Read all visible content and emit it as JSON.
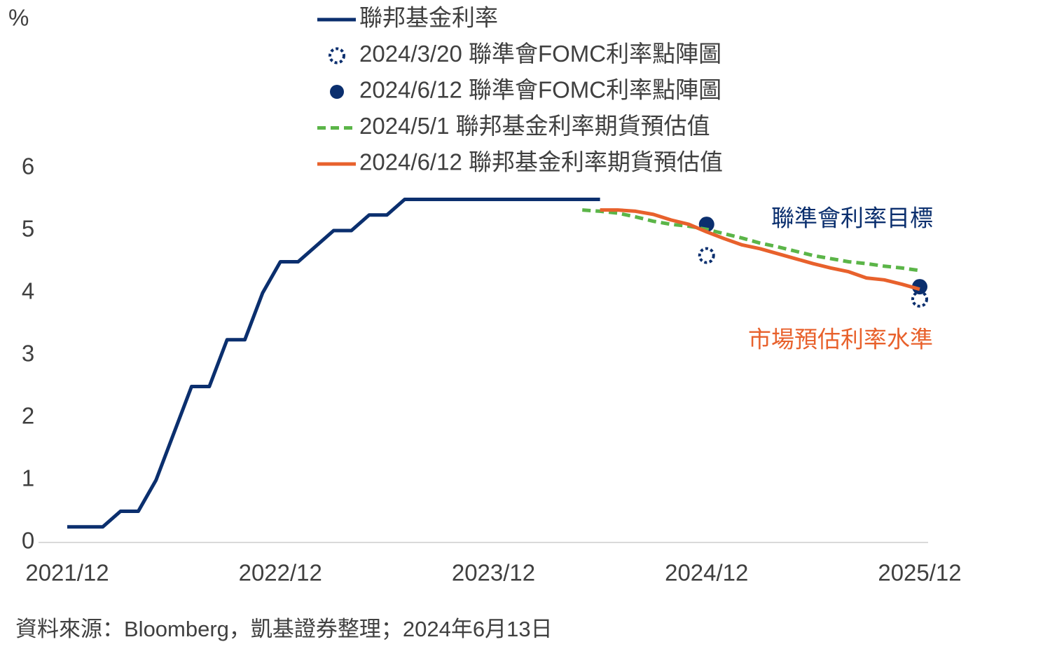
{
  "chart_data": {
    "type": "line",
    "y_unit": "%",
    "x": [
      "2021/12",
      "2022/01",
      "2022/02",
      "2022/03",
      "2022/04",
      "2022/05",
      "2022/06",
      "2022/07",
      "2022/08",
      "2022/09",
      "2022/10",
      "2022/11",
      "2022/12",
      "2023/01",
      "2023/02",
      "2023/03",
      "2023/04",
      "2023/05",
      "2023/06",
      "2023/07",
      "2023/08",
      "2023/09",
      "2023/10",
      "2023/11",
      "2023/12",
      "2024/01",
      "2024/02",
      "2024/03",
      "2024/04",
      "2024/05",
      "2024/06",
      "2024/07",
      "2024/08",
      "2024/09",
      "2024/10",
      "2024/11",
      "2024/12",
      "2025/01",
      "2025/02",
      "2025/03",
      "2025/04",
      "2025/05",
      "2025/06",
      "2025/07",
      "2025/08",
      "2025/09",
      "2025/10",
      "2025/11",
      "2025/12"
    ],
    "xticks": [
      "2021/12",
      "2022/12",
      "2023/12",
      "2024/12",
      "2025/12"
    ],
    "ylim": [
      0,
      6
    ],
    "yticks": [
      0,
      1,
      2,
      3,
      4,
      5,
      6
    ],
    "grid": false,
    "series": [
      {
        "name": "聯邦基金利率",
        "style": "line",
        "color": "#0b2f6e",
        "values": [
          0.25,
          0.25,
          0.25,
          0.5,
          0.5,
          1.0,
          1.75,
          2.5,
          2.5,
          3.25,
          3.25,
          4.0,
          4.5,
          4.5,
          4.75,
          5.0,
          5.0,
          5.25,
          5.25,
          5.5,
          5.5,
          5.5,
          5.5,
          5.5,
          5.5,
          5.5,
          5.5,
          5.5,
          5.5,
          5.5,
          5.5,
          null,
          null,
          null,
          null,
          null,
          null,
          null,
          null,
          null,
          null,
          null,
          null,
          null,
          null,
          null,
          null,
          null,
          null
        ]
      },
      {
        "name": "2024/3/20 聯準會FOMC利率點陣圖",
        "style": "hollow-dot",
        "color": "#0b2f6e",
        "values": [
          null,
          null,
          null,
          null,
          null,
          null,
          null,
          null,
          null,
          null,
          null,
          null,
          null,
          null,
          null,
          null,
          null,
          null,
          null,
          null,
          null,
          null,
          null,
          null,
          null,
          null,
          null,
          null,
          null,
          null,
          null,
          null,
          null,
          null,
          null,
          null,
          4.6,
          null,
          null,
          null,
          null,
          null,
          null,
          null,
          null,
          null,
          null,
          null,
          3.9
        ]
      },
      {
        "name": "2024/6/12 聯準會FOMC利率點陣圖",
        "style": "dot",
        "color": "#0b2f6e",
        "values": [
          null,
          null,
          null,
          null,
          null,
          null,
          null,
          null,
          null,
          null,
          null,
          null,
          null,
          null,
          null,
          null,
          null,
          null,
          null,
          null,
          null,
          null,
          null,
          null,
          null,
          null,
          null,
          null,
          null,
          null,
          null,
          null,
          null,
          null,
          null,
          null,
          5.1,
          null,
          null,
          null,
          null,
          null,
          null,
          null,
          null,
          null,
          null,
          null,
          4.1
        ]
      },
      {
        "name": "2024/5/1 聯邦基金利率期貨預估值",
        "style": "dashed",
        "color": "#5bb548",
        "values": [
          null,
          null,
          null,
          null,
          null,
          null,
          null,
          null,
          null,
          null,
          null,
          null,
          null,
          null,
          null,
          null,
          null,
          null,
          null,
          null,
          null,
          null,
          null,
          null,
          null,
          null,
          null,
          null,
          null,
          5.33,
          5.31,
          5.28,
          5.22,
          5.15,
          5.1,
          5.07,
          5.02,
          4.95,
          4.88,
          4.8,
          4.74,
          4.67,
          4.6,
          4.55,
          4.5,
          4.47,
          4.43,
          4.4,
          4.36
        ]
      },
      {
        "name": "2024/6/12 聯邦基金利率期貨預估值",
        "style": "line",
        "color": "#e8612c",
        "values": [
          null,
          null,
          null,
          null,
          null,
          null,
          null,
          null,
          null,
          null,
          null,
          null,
          null,
          null,
          null,
          null,
          null,
          null,
          null,
          null,
          null,
          null,
          null,
          null,
          null,
          null,
          null,
          null,
          null,
          null,
          5.33,
          5.33,
          5.31,
          5.26,
          5.17,
          5.1,
          4.98,
          4.87,
          4.77,
          4.71,
          4.63,
          4.55,
          4.47,
          4.4,
          4.34,
          4.24,
          4.21,
          4.14,
          4.06
        ]
      }
    ],
    "annotations": [
      {
        "text": "聯準會利率目標",
        "color": "#0b2f6e"
      },
      {
        "text": "市場預估利率水準",
        "color": "#e8612c"
      }
    ],
    "source": "資料來源：Bloomberg，凱基證券整理；2024年6月13日"
  }
}
